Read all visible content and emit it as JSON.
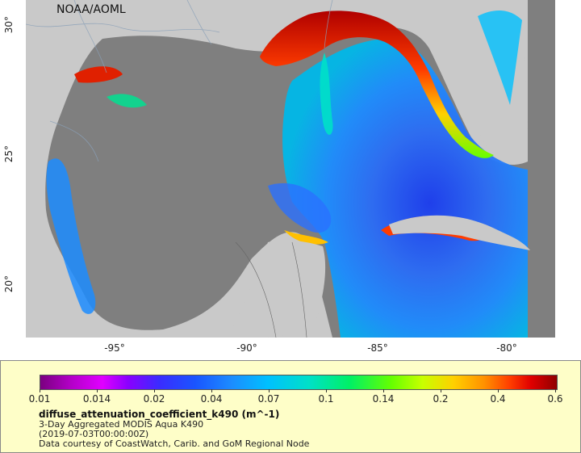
{
  "map": {
    "credit": "NOAA/AOML",
    "lat_ticks": [
      "30°",
      "25°",
      "20°"
    ],
    "lon_ticks": [
      "-95°",
      "-90°",
      "-85°",
      "-80°"
    ],
    "colors": {
      "land": "#c9c9c9",
      "no_data": "#7f7f7f",
      "low": "#1c6cff",
      "mid": "#00e0c8",
      "high": "#e00000"
    }
  },
  "legend": {
    "colorbar_labels": [
      "0.01",
      "0.014",
      "0.02",
      "0.04",
      "0.07",
      "0.1",
      "0.14",
      "0.2",
      "0.4",
      "0.6"
    ],
    "variable": "diffuse_attenuation_coefficient_k490 (m^-1)",
    "line1": "3-Day Aggregated MODIS Aqua K490",
    "line2": "(2019-07-03T00:00:00Z)",
    "line3": "Data courtesy of CoastWatch, Carib. and GoM Regional Node"
  }
}
